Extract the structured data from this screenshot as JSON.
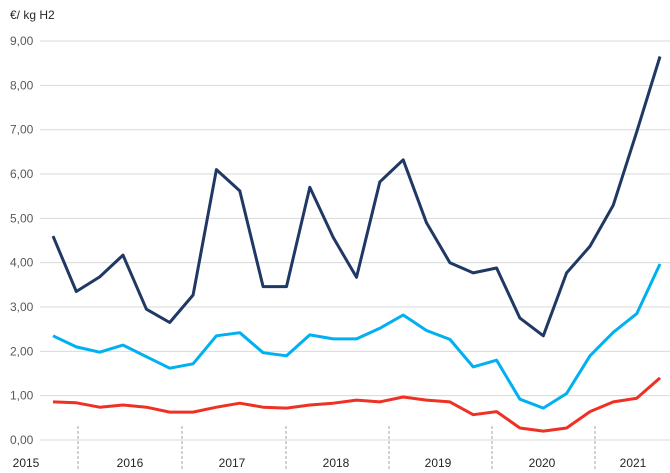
{
  "chart_data": {
    "type": "line",
    "ylabel": "€/ kg H2",
    "ylim": [
      0,
      9
    ],
    "yticks": [
      "0,00",
      "1,00",
      "2,00",
      "3,00",
      "4,00",
      "5,00",
      "6,00",
      "7,00",
      "8,00",
      "9,00"
    ],
    "year_labels": [
      "2015",
      "2016",
      "2017",
      "2018",
      "2019",
      "2020",
      "2021"
    ],
    "grid": true,
    "series": [
      {
        "name": "series-dark",
        "color": "#1f3864",
        "values": [
          4.6,
          3.35,
          3.68,
          4.17,
          2.95,
          2.65,
          3.27,
          6.1,
          5.62,
          3.46,
          3.46,
          5.7,
          4.57,
          3.67,
          5.82,
          6.32,
          4.9,
          4.0,
          3.77,
          3.88,
          2.75,
          2.35,
          3.77,
          4.37,
          5.3,
          6.95,
          8.65
        ]
      },
      {
        "name": "series-light",
        "color": "#00b0f0",
        "values": [
          2.35,
          2.1,
          1.98,
          2.14,
          1.88,
          1.62,
          1.72,
          2.35,
          2.42,
          1.97,
          1.9,
          2.37,
          2.28,
          2.28,
          2.52,
          2.82,
          2.47,
          2.27,
          1.65,
          1.8,
          0.92,
          0.72,
          1.05,
          1.9,
          2.43,
          2.85,
          3.97
        ]
      },
      {
        "name": "series-red",
        "color": "#ee3124",
        "values": [
          0.86,
          0.84,
          0.74,
          0.79,
          0.74,
          0.63,
          0.63,
          0.74,
          0.83,
          0.74,
          0.72,
          0.79,
          0.83,
          0.9,
          0.86,
          0.97,
          0.9,
          0.86,
          0.57,
          0.64,
          0.27,
          0.2,
          0.27,
          0.64,
          0.86,
          0.94,
          1.4
        ]
      }
    ]
  }
}
